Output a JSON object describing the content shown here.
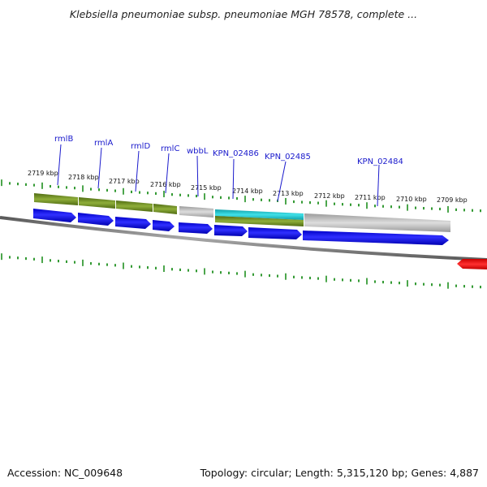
{
  "title": "Klebsiella pneumoniae subsp. pneumoniae MGH 78578, complete ...",
  "footer": {
    "accession": "Accession: NC_009648",
    "summary": "Topology: circular; Length: 5,315,120 bp; Genes: 4,887"
  },
  "colors": {
    "cds": "#0000ee",
    "gene_green": "#6b8e23",
    "misc_gray": "#b8b8b8",
    "highlight_cyan": "#22c8d0",
    "red_feature": "#ee0000",
    "tick_green": "#008000",
    "label_blue": "#1a1acc"
  },
  "scale_labels": [
    "2719 kbp",
    "2718 kbp",
    "2717 kbp",
    "2716 kbp",
    "2715 kbp",
    "2714 kbp",
    "2713 kbp",
    "2712 kbp",
    "2711 kbp",
    "2710 kbp",
    "2709 kbp"
  ],
  "gene_labels": [
    "rmlB",
    "rmlA",
    "rmlD",
    "rmlC",
    "wbbL",
    "KPN_02486",
    "KPN_02485",
    "KPN_02484"
  ]
}
